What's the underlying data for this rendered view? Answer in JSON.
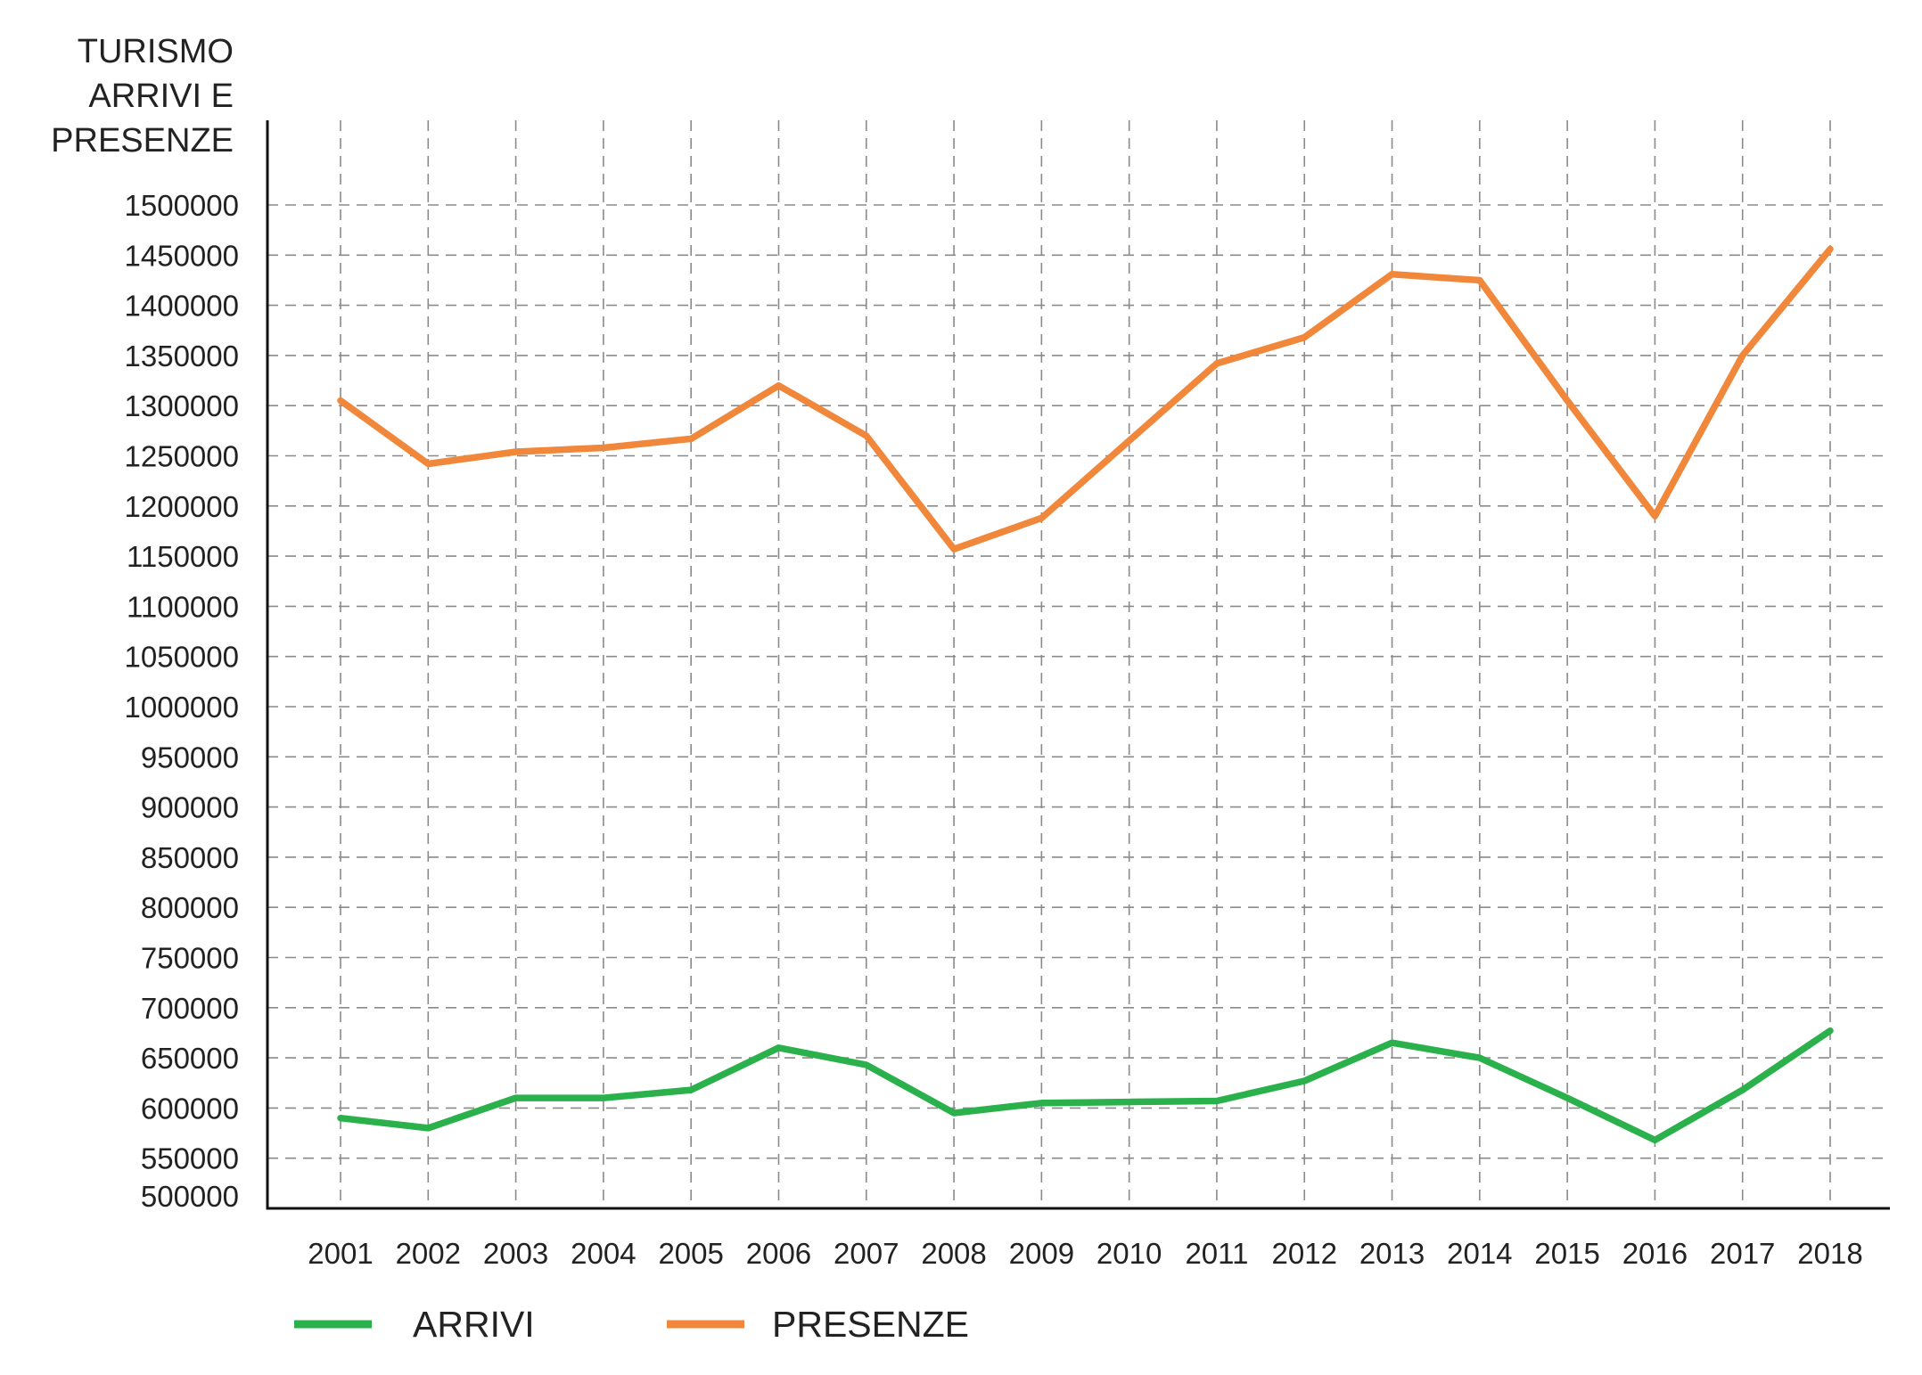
{
  "chart_data": {
    "type": "line",
    "title": "",
    "ylabel_lines": [
      "TURISMO",
      "ARRIVI E",
      "PRESENZE"
    ],
    "xlabel": "",
    "categories": [
      "2001",
      "2002",
      "2003",
      "2004",
      "2005",
      "2006",
      "2007",
      "2008",
      "2009",
      "2010",
      "2011",
      "2012",
      "2013",
      "2014",
      "2015",
      "2016",
      "2017",
      "2018"
    ],
    "yticks": [
      500000,
      550000,
      600000,
      650000,
      700000,
      750000,
      800000,
      850000,
      900000,
      950000,
      1000000,
      1050000,
      1100000,
      1150000,
      1200000,
      1250000,
      1300000,
      1350000,
      1400000,
      1450000,
      1500000
    ],
    "ylim": [
      500000,
      1585000
    ],
    "grid": true,
    "legend_position": "bottom-left",
    "series": [
      {
        "name": "ARRIVI",
        "color": "#2bb14b",
        "values": [
          590000,
          580000,
          610000,
          610000,
          618000,
          660000,
          643000,
          595000,
          605000,
          606000,
          607000,
          627000,
          665000,
          650000,
          610000,
          568000,
          618000,
          677000
        ]
      },
      {
        "name": "PRESENZE",
        "color": "#f0873a",
        "values": [
          1305000,
          1242000,
          1254000,
          1258000,
          1267000,
          1320000,
          1270000,
          1157000,
          1188000,
          1265000,
          1342000,
          1368000,
          1431000,
          1425000,
          1305000,
          1190000,
          1350000,
          1456000
        ]
      }
    ]
  }
}
